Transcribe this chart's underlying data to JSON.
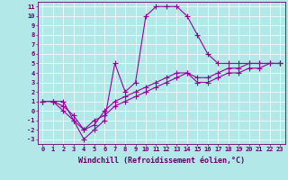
{
  "xlabel": "Windchill (Refroidissement éolien,°C)",
  "line1_x": [
    0,
    1,
    2,
    3,
    4,
    5,
    6,
    7,
    8,
    9,
    10,
    11,
    12,
    13,
    14,
    15,
    16,
    17,
    18,
    19,
    20,
    21,
    22,
    23
  ],
  "line1_y": [
    1,
    1,
    1,
    -1,
    -3,
    -2,
    -1,
    5,
    2,
    3,
    10,
    11,
    11,
    11,
    10,
    8,
    6,
    5,
    5,
    5,
    5,
    5,
    5,
    5
  ],
  "line2_x": [
    0,
    1,
    2,
    3,
    4,
    5,
    6,
    7,
    8,
    9,
    10,
    11,
    12,
    13,
    14,
    15,
    16,
    17,
    18,
    19,
    20,
    21,
    22,
    23
  ],
  "line2_y": [
    1,
    1,
    0.5,
    -0.5,
    -2,
    -1.5,
    0,
    1,
    1.5,
    2,
    2.5,
    3,
    3.5,
    4,
    4,
    3.5,
    3.5,
    4,
    4.5,
    4.5,
    5,
    5,
    5,
    5
  ],
  "line3_x": [
    0,
    1,
    2,
    3,
    4,
    5,
    6,
    7,
    8,
    9,
    10,
    11,
    12,
    13,
    14,
    15,
    16,
    17,
    18,
    19,
    20,
    21,
    22,
    23
  ],
  "line3_y": [
    1,
    1,
    0,
    -1,
    -2,
    -1,
    -0.5,
    0.5,
    1,
    1.5,
    2,
    2.5,
    3,
    3.5,
    4,
    3,
    3,
    3.5,
    4,
    4,
    4.5,
    4.5,
    5,
    5
  ],
  "line_color": "#990099",
  "bg_color": "#b2e8e8",
  "grid_color": "#ffffff",
  "ylim": [
    -3,
    11
  ],
  "xlim": [
    0,
    23
  ],
  "yticks": [
    -3,
    -2,
    -1,
    0,
    1,
    2,
    3,
    4,
    5,
    6,
    7,
    8,
    9,
    10,
    11
  ],
  "xticks": [
    0,
    1,
    2,
    3,
    4,
    5,
    6,
    7,
    8,
    9,
    10,
    11,
    12,
    13,
    14,
    15,
    16,
    17,
    18,
    19,
    20,
    21,
    22,
    23
  ],
  "marker": "+",
  "markersize": 4,
  "linewidth": 0.8,
  "tick_fontsize": 5.0,
  "xlabel_fontsize": 6.0,
  "axis_color": "#660066"
}
